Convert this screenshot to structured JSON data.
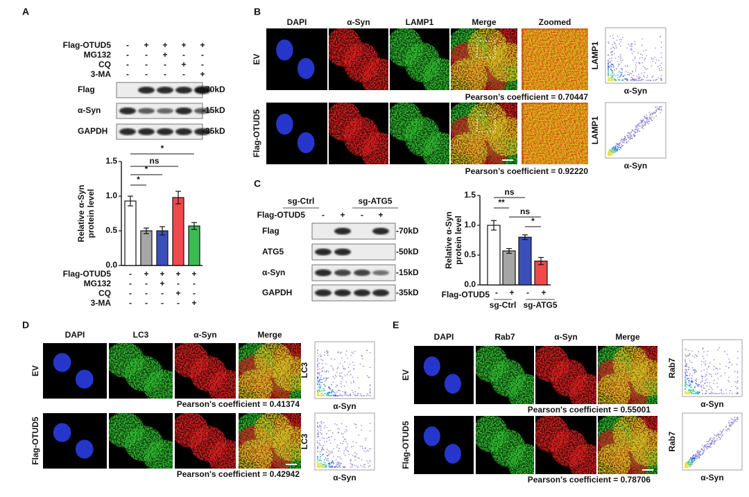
{
  "panels": {
    "A": {
      "letter": "A",
      "conditions": [
        {
          "label": "Flag-OTUD5",
          "signs": [
            "-",
            "+",
            "+",
            "+",
            "+"
          ]
        },
        {
          "label": "MG132",
          "signs": [
            "-",
            "-",
            "+",
            "-",
            "-"
          ]
        },
        {
          "label": "CQ",
          "signs": [
            "-",
            "-",
            "-",
            "+",
            "-"
          ]
        },
        {
          "label": "3-MA",
          "signs": [
            "-",
            "-",
            "-",
            "-",
            "+"
          ]
        }
      ],
      "blots": [
        {
          "label": "Flag",
          "size": "-70kD"
        },
        {
          "label": "α-Syn",
          "size": "-15kD"
        },
        {
          "label": "GAPDH",
          "size": "-35kD"
        }
      ],
      "chart": {
        "type": "bar",
        "ylabel": [
          "Relative α-Syn",
          "protein level"
        ],
        "values": [
          0.93,
          0.5,
          0.5,
          0.98,
          0.57
        ],
        "errors": [
          0.07,
          0.04,
          0.06,
          0.09,
          0.05
        ],
        "colors": [
          "#ffffff",
          "#a6a6a6",
          "#3b4fb8",
          "#f0494b",
          "#3dbb52"
        ],
        "ylim": [
          0,
          1.5
        ],
        "yticks": [
          {
            "value": 0,
            "label": "0.0"
          },
          0.5,
          {
            "value": 1,
            "label": "1.0"
          },
          1.5
        ],
        "significance": [
          "*",
          "*",
          "ns",
          "*"
        ]
      }
    },
    "B": {
      "letter": "B",
      "channels": [
        "DAPI",
        "α-Syn",
        "LAMP1",
        "Merge",
        "Zoomed"
      ],
      "rows": [
        {
          "label": "EV",
          "pearson": "Pearson’s coefficient = 0.70447"
        },
        {
          "label": "Flag-OTUD5",
          "pearson": "Pearson’s coefficient = 0.92220"
        }
      ],
      "scatter": {
        "xlabel": "α-Syn",
        "ylabel": "LAMP1"
      }
    },
    "C": {
      "letter": "C",
      "groups": [
        "sg-Ctrl",
        "sg-ATG5"
      ],
      "condition": {
        "label": "Flag-OTUD5",
        "signs": [
          "-",
          "+",
          "-",
          "+"
        ]
      },
      "blots": [
        {
          "label": "Flag",
          "size": "-70kD"
        },
        {
          "label": "ATG5",
          "size": "-50kD"
        },
        {
          "label": "α-Syn",
          "size": "-15kD"
        },
        {
          "label": "GAPDH",
          "size": "-35kD"
        }
      ],
      "chart": {
        "type": "bar",
        "ylabel": [
          "Relative α-Syn",
          "protein level"
        ],
        "values": [
          1.0,
          0.57,
          0.8,
          0.4
        ],
        "errors": [
          0.08,
          0.04,
          0.04,
          0.06
        ],
        "colors": [
          "#ffffff",
          "#a6a6a6",
          "#3b4fb8",
          "#f0494b"
        ],
        "ylim": [
          0,
          1.5
        ],
        "yticks": [
          {
            "value": 0,
            "label": "0.0"
          },
          0.5,
          {
            "value": 1,
            "label": "1.0"
          },
          1.5
        ],
        "significance": [
          "ns",
          "**",
          "ns",
          "*"
        ]
      }
    },
    "D": {
      "letter": "D",
      "channels": [
        "DAPI",
        "LC3",
        "α-Syn",
        "Merge"
      ],
      "rows": [
        {
          "label": "EV",
          "pearson": "Pearson's coefficient = 0.41374"
        },
        {
          "label": "Flag-OTUD5",
          "pearson": "Pearson's coefficient = 0.42942"
        }
      ],
      "scatter": {
        "xlabel": "α-Syn",
        "ylabel": "LC3"
      }
    },
    "E": {
      "letter": "E",
      "channels": [
        "DAPI",
        "Rab7",
        "α-Syn",
        "Merge"
      ],
      "rows": [
        {
          "label": "EV",
          "pearson": "Pearson's coefficient = 0.55001"
        },
        {
          "label": "Flag-OTUD5",
          "pearson": "Pearson's coefficient = 0.78706"
        }
      ],
      "scatter": {
        "xlabel": "α-Syn",
        "ylabel": "Rab7"
      }
    }
  }
}
